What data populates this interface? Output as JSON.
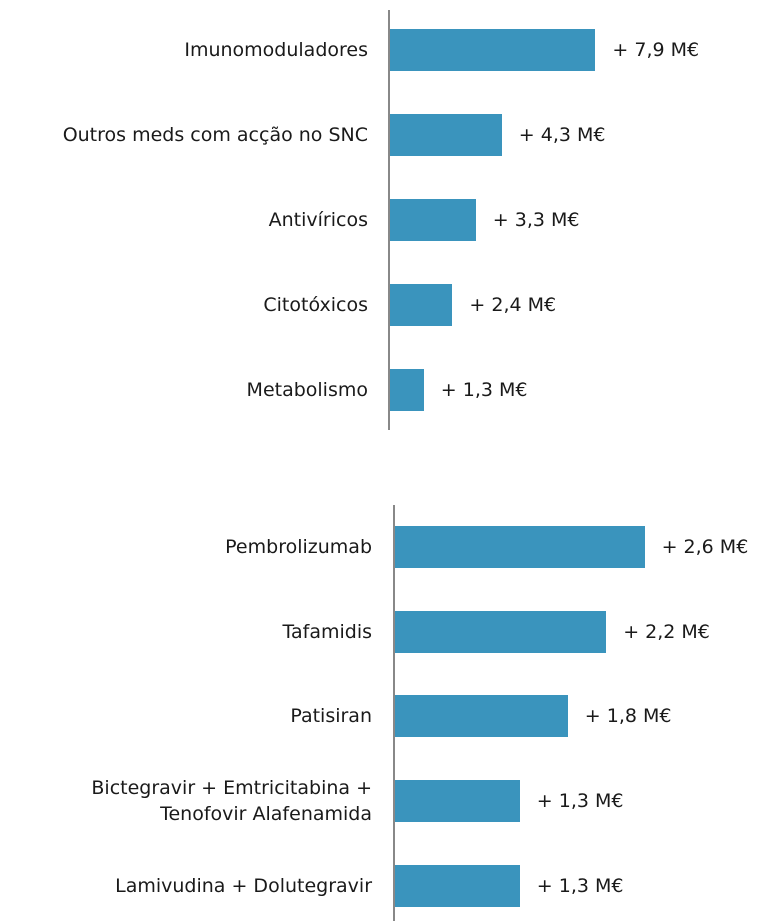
{
  "chart_data": [
    {
      "type": "bar",
      "orientation": "horizontal",
      "color": "#3a94bd",
      "categories": [
        "Imunomoduladores",
        "Outros meds com acção no SNC",
        "Antivíricos",
        "Citotóxicos",
        "Metabolismo"
      ],
      "values": [
        7.9,
        4.3,
        3.3,
        2.4,
        1.3
      ],
      "value_labels": [
        "+ 7,9 M€",
        "+ 4,3 M€",
        "+ 3,3 M€",
        "+ 2,4 M€",
        "+ 1,3 M€"
      ]
    },
    {
      "type": "bar",
      "orientation": "horizontal",
      "color": "#3a94bd",
      "categories": [
        "Pembrolizumab",
        "Tafamidis",
        "Patisiran",
        "Bictegravir + Emtricitabina +\nTenofovir Alafenamida",
        "Lamivudina + Dolutegravir"
      ],
      "values": [
        2.6,
        2.2,
        1.8,
        1.3,
        1.3
      ],
      "value_labels": [
        "+ 2,6 M€",
        "+ 2,2 M€",
        "+ 1,8 M€",
        "+ 1,3 M€",
        "+ 1,3 M€"
      ]
    }
  ]
}
